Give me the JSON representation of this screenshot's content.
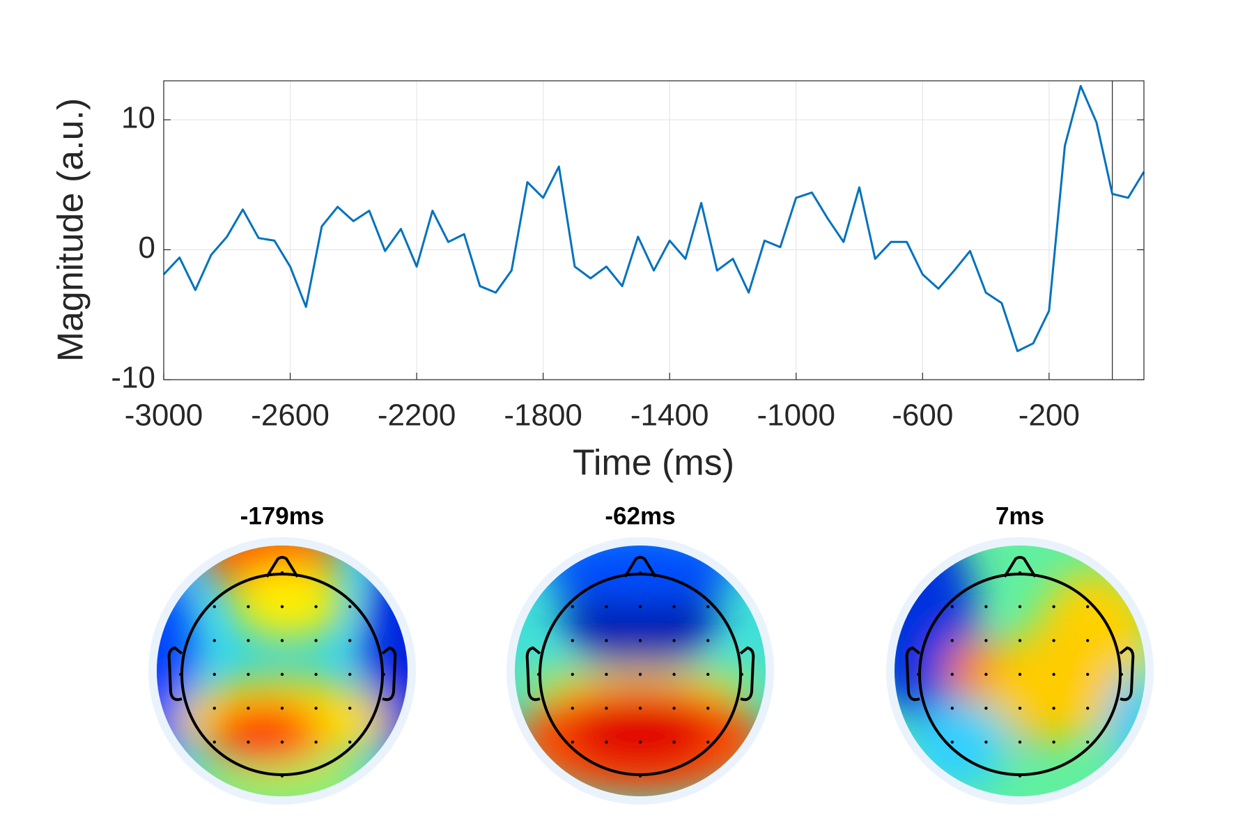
{
  "chart_data": {
    "type": "line",
    "xlabel": "Time (ms)",
    "ylabel": "Magnitude (a.u.)",
    "x": [
      -3000,
      -2950,
      -2900,
      -2850,
      -2800,
      -2750,
      -2700,
      -2650,
      -2600,
      -2550,
      -2500,
      -2450,
      -2400,
      -2350,
      -2300,
      -2250,
      -2200,
      -2150,
      -2100,
      -2050,
      -2000,
      -1950,
      -1900,
      -1850,
      -1800,
      -1750,
      -1700,
      -1650,
      -1600,
      -1550,
      -1500,
      -1450,
      -1400,
      -1350,
      -1300,
      -1250,
      -1200,
      -1150,
      -1100,
      -1050,
      -1000,
      -950,
      -900,
      -850,
      -800,
      -750,
      -700,
      -650,
      -600,
      -550,
      -500,
      -450,
      -400,
      -350,
      -300,
      -250,
      -200,
      -150,
      -100,
      -50,
      0,
      50,
      100
    ],
    "series": [
      {
        "color": "#0072bd",
        "values": [
          -1.9,
          -0.6,
          -3.1,
          -0.4,
          1.0,
          3.1,
          0.9,
          0.7,
          -1.3,
          -4.4,
          1.8,
          3.3,
          2.2,
          3.0,
          -0.1,
          1.6,
          -1.3,
          3.0,
          0.6,
          1.2,
          -2.8,
          -3.3,
          -1.6,
          5.2,
          4.0,
          6.4,
          -1.3,
          -2.2,
          -1.3,
          -2.8,
          1.0,
          -1.6,
          0.7,
          -0.7,
          3.6,
          -1.6,
          -0.7,
          -3.3,
          0.7,
          0.2,
          4.0,
          4.4,
          2.4,
          0.6,
          4.8,
          -0.7,
          0.6,
          0.6,
          -1.9,
          -3.0,
          -1.6,
          -0.1,
          -3.3,
          -4.1,
          -7.8,
          -7.2,
          -4.7,
          8.0,
          12.6,
          9.8,
          4.3,
          4.0,
          6.0
        ]
      }
    ],
    "xlim": [
      -3000,
      100
    ],
    "ylim": [
      -10,
      13
    ],
    "xticks": [
      -3000,
      -2600,
      -2200,
      -1800,
      -1400,
      -1000,
      -600,
      -200
    ],
    "yticks": [
      -10,
      0,
      10
    ],
    "grid": true,
    "vline": 0
  },
  "topomaps": [
    {
      "title": "-179ms"
    },
    {
      "title": "-62ms"
    },
    {
      "title": "7ms"
    }
  ]
}
